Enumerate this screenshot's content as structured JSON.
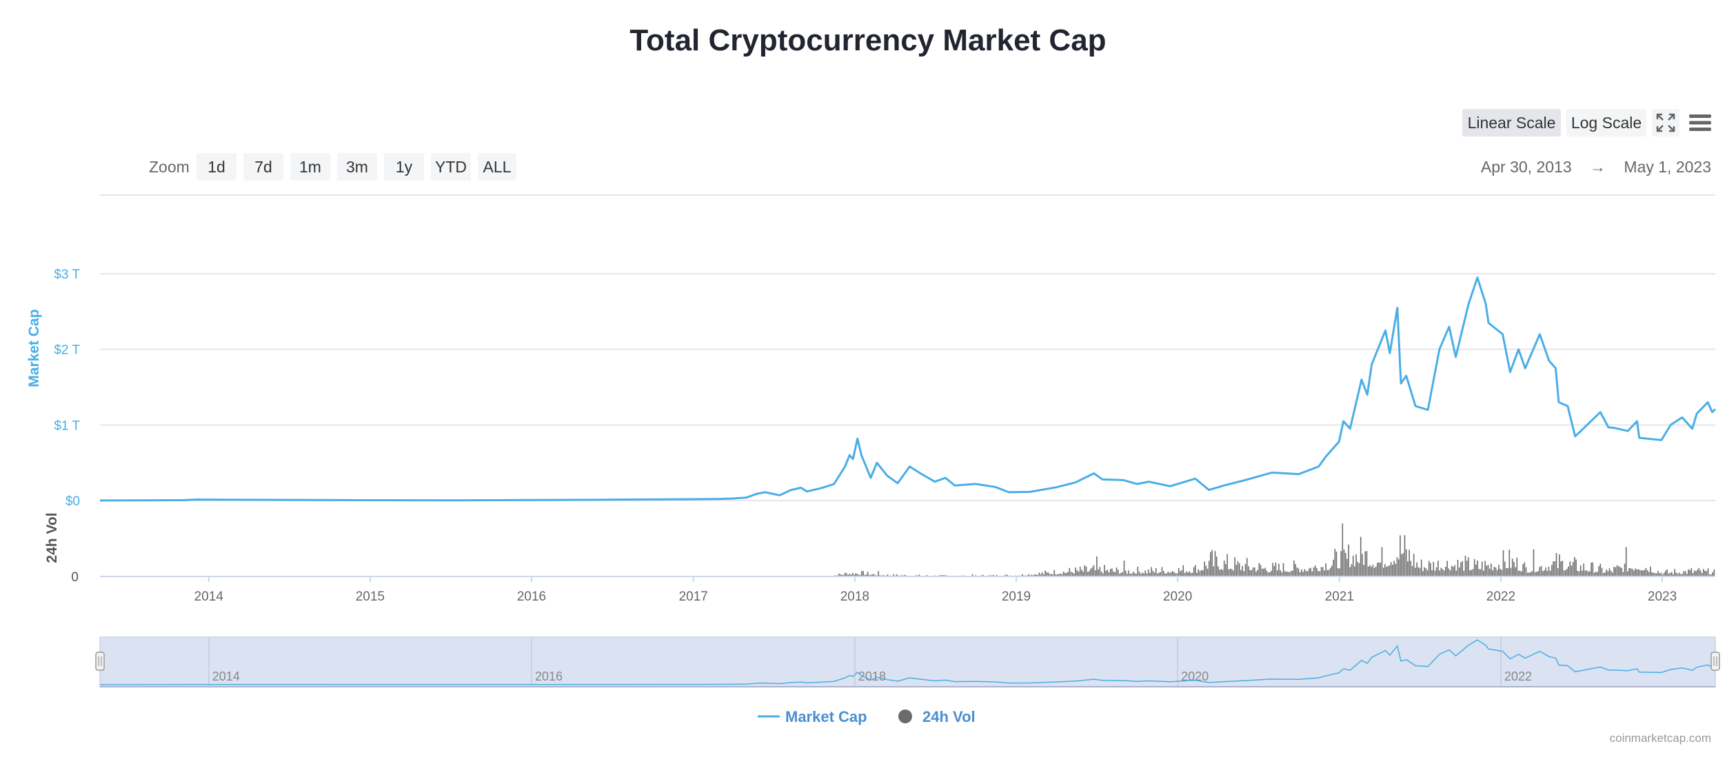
{
  "header": {
    "title": "Total Cryptocurrency Market Cap"
  },
  "scale_buttons": {
    "linear": "Linear Scale",
    "log": "Log Scale",
    "active": "linear"
  },
  "icons": {
    "fullscreen": "fullscreen-icon",
    "menu": "hamburger-menu-icon"
  },
  "zoom": {
    "label": "Zoom",
    "options": [
      "1d",
      "7d",
      "1m",
      "3m",
      "1y",
      "YTD",
      "ALL"
    ]
  },
  "date_range": {
    "from": "Apr 30, 2013",
    "arrow": "→",
    "to": "May 1, 2023"
  },
  "legend": {
    "market_cap": "Market Cap",
    "volume": "24h Vol"
  },
  "credit": "coinmarketcap.com",
  "colors": {
    "market_cap": "#4aaee6",
    "volume": "#6b6b6b",
    "navigator_fill": "#dbe2f1",
    "title": "#222531"
  },
  "chart_data": {
    "type": "line",
    "title": "Total Cryptocurrency Market Cap",
    "x_range": [
      "2013-04-30",
      "2023-05-01"
    ],
    "x_ticks": [
      "2014",
      "2015",
      "2016",
      "2017",
      "2018",
      "2019",
      "2020",
      "2021",
      "2022",
      "2023"
    ],
    "navigator_ticks": [
      "2014",
      "2016",
      "2018",
      "2020",
      "2022"
    ],
    "grid": true,
    "legend_position": "bottom-center",
    "y_axis_market_cap": {
      "label": "Market Cap",
      "unit": "trillion USD",
      "range": [
        0,
        3
      ],
      "ticks": [
        0,
        1,
        2,
        3
      ],
      "tick_labels": [
        "$0",
        "$1 T",
        "$2 T",
        "$3 T"
      ]
    },
    "y_axis_volume": {
      "label": "24h Vol",
      "tick_labels": [
        "0"
      ]
    },
    "series": [
      {
        "name": "Market Cap",
        "unit": "trillion USD",
        "points": [
          [
            "2013-04-30",
            0.001
          ],
          [
            "2013-11-01",
            0.005
          ],
          [
            "2013-12-04",
            0.014
          ],
          [
            "2014-02-01",
            0.012
          ],
          [
            "2014-06-01",
            0.009
          ],
          [
            "2015-01-01",
            0.005
          ],
          [
            "2015-08-01",
            0.004
          ],
          [
            "2016-01-01",
            0.007
          ],
          [
            "2016-06-15",
            0.012
          ],
          [
            "2017-01-01",
            0.018
          ],
          [
            "2017-03-01",
            0.022
          ],
          [
            "2017-04-01",
            0.027
          ],
          [
            "2017-05-01",
            0.04
          ],
          [
            "2017-05-25",
            0.09
          ],
          [
            "2017-06-12",
            0.11
          ],
          [
            "2017-07-15",
            0.07
          ],
          [
            "2017-08-10",
            0.14
          ],
          [
            "2017-09-01",
            0.17
          ],
          [
            "2017-09-15",
            0.12
          ],
          [
            "2017-10-20",
            0.17
          ],
          [
            "2017-11-15",
            0.22
          ],
          [
            "2017-12-10",
            0.45
          ],
          [
            "2017-12-20",
            0.6
          ],
          [
            "2017-12-28",
            0.55
          ],
          [
            "2018-01-07",
            0.82
          ],
          [
            "2018-01-16",
            0.6
          ],
          [
            "2018-02-06",
            0.3
          ],
          [
            "2018-02-20",
            0.5
          ],
          [
            "2018-03-15",
            0.33
          ],
          [
            "2018-04-08",
            0.23
          ],
          [
            "2018-05-05",
            0.45
          ],
          [
            "2018-06-01",
            0.35
          ],
          [
            "2018-07-01",
            0.25
          ],
          [
            "2018-07-25",
            0.3
          ],
          [
            "2018-08-15",
            0.2
          ],
          [
            "2018-10-01",
            0.22
          ],
          [
            "2018-11-15",
            0.18
          ],
          [
            "2018-12-15",
            0.11
          ],
          [
            "2019-02-01",
            0.115
          ],
          [
            "2019-04-01",
            0.175
          ],
          [
            "2019-05-15",
            0.24
          ],
          [
            "2019-06-26",
            0.36
          ],
          [
            "2019-07-15",
            0.28
          ],
          [
            "2019-09-01",
            0.27
          ],
          [
            "2019-10-01",
            0.22
          ],
          [
            "2019-10-28",
            0.25
          ],
          [
            "2019-12-15",
            0.19
          ],
          [
            "2020-02-10",
            0.29
          ],
          [
            "2020-03-12",
            0.14
          ],
          [
            "2020-04-15",
            0.2
          ],
          [
            "2020-06-01",
            0.27
          ],
          [
            "2020-08-01",
            0.37
          ],
          [
            "2020-10-01",
            0.35
          ],
          [
            "2020-11-15",
            0.45
          ],
          [
            "2020-12-01",
            0.58
          ],
          [
            "2020-12-31",
            0.78
          ],
          [
            "2021-01-10",
            1.05
          ],
          [
            "2021-01-25",
            0.95
          ],
          [
            "2021-02-20",
            1.6
          ],
          [
            "2021-03-05",
            1.4
          ],
          [
            "2021-03-15",
            1.8
          ],
          [
            "2021-04-15",
            2.25
          ],
          [
            "2021-04-25",
            1.95
          ],
          [
            "2021-05-12",
            2.55
          ],
          [
            "2021-05-20",
            1.55
          ],
          [
            "2021-06-01",
            1.65
          ],
          [
            "2021-06-22",
            1.25
          ],
          [
            "2021-07-20",
            1.2
          ],
          [
            "2021-08-15",
            2.0
          ],
          [
            "2021-09-06",
            2.3
          ],
          [
            "2021-09-21",
            1.9
          ],
          [
            "2021-10-20",
            2.6
          ],
          [
            "2021-11-09",
            2.95
          ],
          [
            "2021-11-28",
            2.6
          ],
          [
            "2021-12-04",
            2.35
          ],
          [
            "2022-01-05",
            2.2
          ],
          [
            "2022-01-22",
            1.7
          ],
          [
            "2022-02-10",
            2.0
          ],
          [
            "2022-02-25",
            1.75
          ],
          [
            "2022-03-30",
            2.2
          ],
          [
            "2022-04-20",
            1.85
          ],
          [
            "2022-05-05",
            1.75
          ],
          [
            "2022-05-12",
            1.3
          ],
          [
            "2022-06-01",
            1.25
          ],
          [
            "2022-06-18",
            0.85
          ],
          [
            "2022-07-01",
            0.92
          ],
          [
            "2022-08-14",
            1.17
          ],
          [
            "2022-09-01",
            0.97
          ],
          [
            "2022-09-15",
            0.96
          ],
          [
            "2022-10-15",
            0.92
          ],
          [
            "2022-11-05",
            1.05
          ],
          [
            "2022-11-10",
            0.83
          ],
          [
            "2022-12-30",
            0.8
          ],
          [
            "2023-01-20",
            1.0
          ],
          [
            "2023-02-15",
            1.1
          ],
          [
            "2023-03-10",
            0.95
          ],
          [
            "2023-03-20",
            1.15
          ],
          [
            "2023-04-14",
            1.3
          ],
          [
            "2023-04-24",
            1.17
          ],
          [
            "2023-05-01",
            1.21
          ]
        ]
      },
      {
        "name": "24h Vol",
        "unit": "relative volume (unitless, 0-1)",
        "envelope": [
          [
            "2017-11-01",
            0.0
          ],
          [
            "2017-11-15",
            0.04
          ],
          [
            "2017-12-15",
            0.1
          ],
          [
            "2018-01-07",
            0.11
          ],
          [
            "2018-03-01",
            0.05
          ],
          [
            "2018-06-01",
            0.03
          ],
          [
            "2018-09-01",
            0.02
          ],
          [
            "2019-01-01",
            0.04
          ],
          [
            "2019-04-01",
            0.14
          ],
          [
            "2019-06-26",
            0.22
          ],
          [
            "2019-09-01",
            0.17
          ],
          [
            "2019-12-01",
            0.19
          ],
          [
            "2020-02-15",
            0.25
          ],
          [
            "2020-03-12",
            0.5
          ],
          [
            "2020-05-01",
            0.38
          ],
          [
            "2020-08-01",
            0.26
          ],
          [
            "2020-11-01",
            0.3
          ],
          [
            "2021-01-10",
            0.58
          ],
          [
            "2021-02-22",
            0.75
          ],
          [
            "2021-04-01",
            0.5
          ],
          [
            "2021-05-19",
            0.95
          ],
          [
            "2021-07-01",
            0.35
          ],
          [
            "2021-09-07",
            0.42
          ],
          [
            "2021-11-10",
            0.33
          ],
          [
            "2022-01-22",
            0.5
          ],
          [
            "2022-03-01",
            0.25
          ],
          [
            "2022-05-12",
            0.45
          ],
          [
            "2022-06-14",
            0.35
          ],
          [
            "2022-09-01",
            0.18
          ],
          [
            "2022-11-09",
            0.42
          ],
          [
            "2023-01-01",
            0.12
          ],
          [
            "2023-03-13",
            0.18
          ],
          [
            "2023-05-01",
            0.12
          ]
        ]
      }
    ]
  }
}
